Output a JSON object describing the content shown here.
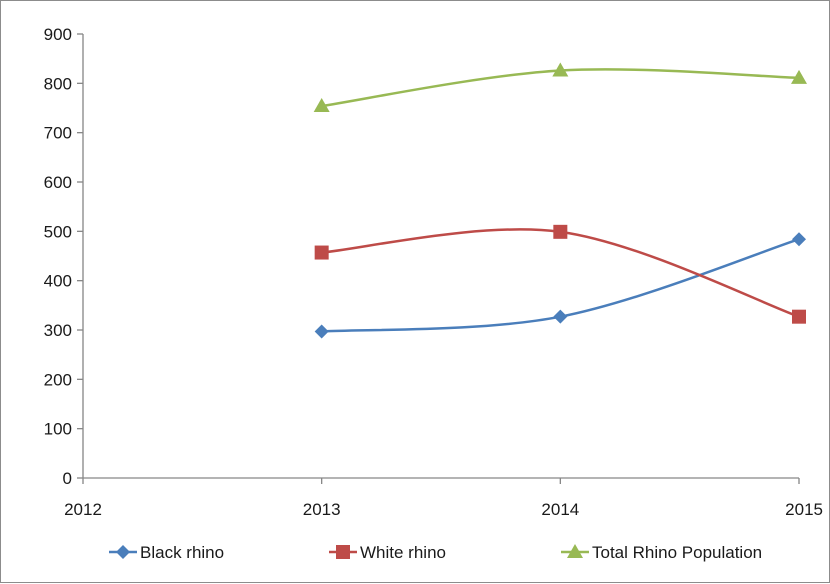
{
  "chart_data": {
    "type": "line",
    "title": "",
    "xlabel": "",
    "ylabel": "",
    "x": [
      2013,
      2014,
      2015
    ],
    "xticks": [
      "2012",
      "2013",
      "2014",
      "2015"
    ],
    "xlim": [
      2012,
      2015
    ],
    "ylim": [
      0,
      900
    ],
    "yticks": [
      "0",
      "100",
      "200",
      "300",
      "400",
      "500",
      "600",
      "700",
      "800",
      "900"
    ],
    "grid": false,
    "smooth": true,
    "legend": "bottom",
    "series": [
      {
        "name": "Black rhino",
        "values": [
          297,
          327,
          484
        ],
        "color": "#4a7ebb",
        "marker": "diamond"
      },
      {
        "name": "White rhino",
        "values": [
          457,
          499,
          327
        ],
        "color": "#be4b48",
        "marker": "square"
      },
      {
        "name": "Total Rhino Population",
        "values": [
          754,
          826,
          811
        ],
        "color": "#98b954",
        "marker": "triangle"
      }
    ]
  }
}
